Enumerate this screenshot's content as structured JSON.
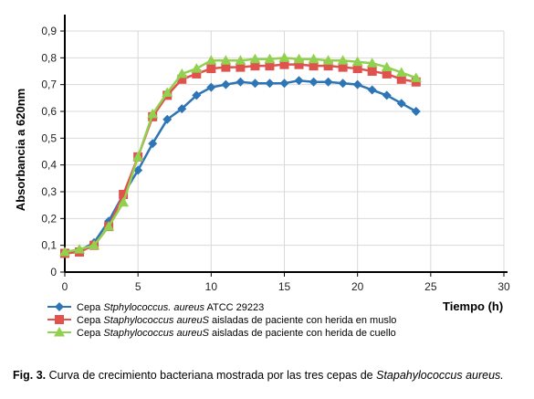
{
  "chart_data": {
    "type": "line",
    "title": "",
    "xlabel": "Tiempo (h)",
    "ylabel": "Absorbancia a 620nm",
    "xlim": [
      0,
      30
    ],
    "ylim": [
      0,
      0.9
    ],
    "xticks": [
      "0",
      "5",
      "10",
      "15",
      "20",
      "25",
      "30"
    ],
    "yticks": [
      "0",
      "0,1",
      "0,2",
      "0,3",
      "0,4",
      "0,5",
      "0,6",
      "0,7",
      "0,8",
      "0,9"
    ],
    "grid": true,
    "legend_position": "bottom",
    "series": [
      {
        "name_plain": "Cepa ",
        "name_italic": "Stphylococcus. aureus",
        "name_suffix": " ATCC 29223",
        "color": "#2e75b6",
        "marker": "diamond",
        "x": [
          0,
          1,
          2,
          3,
          4,
          5,
          6,
          7,
          8,
          9,
          10,
          11,
          12,
          13,
          14,
          15,
          16,
          17,
          18,
          19,
          20,
          21,
          22,
          23,
          24
        ],
        "y": [
          0.07,
          0.08,
          0.11,
          0.19,
          0.29,
          0.38,
          0.48,
          0.57,
          0.61,
          0.66,
          0.69,
          0.7,
          0.71,
          0.705,
          0.705,
          0.705,
          0.715,
          0.71,
          0.71,
          0.705,
          0.7,
          0.68,
          0.66,
          0.63,
          0.6
        ]
      },
      {
        "name_plain": "Cepa ",
        "name_italic": "Staphylococcus aureuS",
        "name_suffix": " aisladas de paciente con herida en muslo",
        "color": "#e0524e",
        "marker": "square",
        "x": [
          0,
          1,
          2,
          3,
          4,
          5,
          6,
          7,
          8,
          9,
          10,
          11,
          12,
          13,
          14,
          15,
          16,
          17,
          18,
          19,
          20,
          21,
          22,
          23,
          24
        ],
        "y": [
          0.07,
          0.075,
          0.1,
          0.17,
          0.29,
          0.43,
          0.58,
          0.66,
          0.72,
          0.74,
          0.76,
          0.765,
          0.765,
          0.77,
          0.77,
          0.775,
          0.775,
          0.77,
          0.77,
          0.765,
          0.76,
          0.75,
          0.74,
          0.72,
          0.71
        ]
      },
      {
        "name_plain": "Cepa ",
        "name_italic": "Staphylococcus aureuS",
        "name_suffix": " aisladas de paciente con herida de cuello",
        "color": "#92d050",
        "marker": "triangle",
        "x": [
          0,
          1,
          2,
          3,
          4,
          5,
          6,
          7,
          8,
          9,
          10,
          11,
          12,
          13,
          14,
          15,
          16,
          17,
          18,
          19,
          20,
          21,
          22,
          23,
          24
        ],
        "y": [
          0.075,
          0.085,
          0.1,
          0.17,
          0.26,
          0.43,
          0.59,
          0.67,
          0.74,
          0.76,
          0.79,
          0.79,
          0.79,
          0.795,
          0.795,
          0.8,
          0.795,
          0.795,
          0.79,
          0.79,
          0.785,
          0.78,
          0.765,
          0.745,
          0.725
        ]
      }
    ]
  },
  "caption": {
    "fig_label": "Fig. 3.",
    "text": " Curva de crecimiento bacteriana mostrada por las tres cepas de ",
    "italic": "Stapahylococcus aureus."
  }
}
